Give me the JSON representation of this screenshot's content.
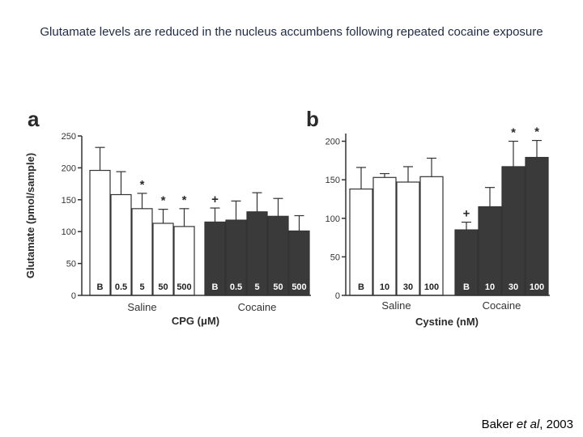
{
  "slide": {
    "title": "Glutamate levels are reduced in the nucleus accumbens following repeated cocaine exposure",
    "citation_prefix": "Baker ",
    "citation_italic": "et al",
    "citation_suffix": ", 2003"
  },
  "colors": {
    "saline": "#ffffff",
    "cocaine": "#3a3a3a",
    "axis": "#333333"
  },
  "chart_data": [
    {
      "panel": "a",
      "type": "bar",
      "ylabel": "Glutamate (pmol/sample)",
      "xlabel": "CPG (μM)",
      "ylim": [
        0,
        250
      ],
      "yticks": [
        0,
        50,
        100,
        150,
        200,
        250
      ],
      "groups": [
        {
          "name": "Saline",
          "color": "saline",
          "categories": [
            "B",
            "0.5",
            "5",
            "50",
            "500"
          ],
          "values": [
            196,
            158,
            136,
            113,
            108
          ],
          "errors": [
            36,
            36,
            24,
            22,
            28
          ],
          "markers": [
            "",
            "",
            "*",
            "*",
            "*"
          ]
        },
        {
          "name": "Cocaine",
          "color": "cocaine",
          "categories": [
            "B",
            "0.5",
            "5",
            "50",
            "500"
          ],
          "values": [
            115,
            118,
            131,
            124,
            101
          ],
          "errors": [
            22,
            30,
            30,
            28,
            24
          ],
          "markers": [
            "+",
            "",
            "",
            "",
            ""
          ]
        }
      ]
    },
    {
      "panel": "b",
      "type": "bar",
      "ylabel": "",
      "xlabel": "Cystine (nM)",
      "ylim": [
        0,
        210
      ],
      "yticks": [
        0,
        50,
        100,
        150,
        200
      ],
      "groups": [
        {
          "name": "Saline",
          "color": "saline",
          "categories": [
            "B",
            "10",
            "30",
            "100"
          ],
          "values": [
            138,
            153,
            147,
            154
          ],
          "errors": [
            28,
            5,
            20,
            24
          ],
          "markers": [
            "",
            "",
            "",
            ""
          ]
        },
        {
          "name": "Cocaine",
          "color": "cocaine",
          "categories": [
            "B",
            "10",
            "30",
            "100"
          ],
          "values": [
            85,
            115,
            167,
            179
          ],
          "errors": [
            10,
            25,
            33,
            22
          ],
          "markers": [
            "+",
            "",
            "*",
            "*"
          ]
        }
      ]
    }
  ]
}
